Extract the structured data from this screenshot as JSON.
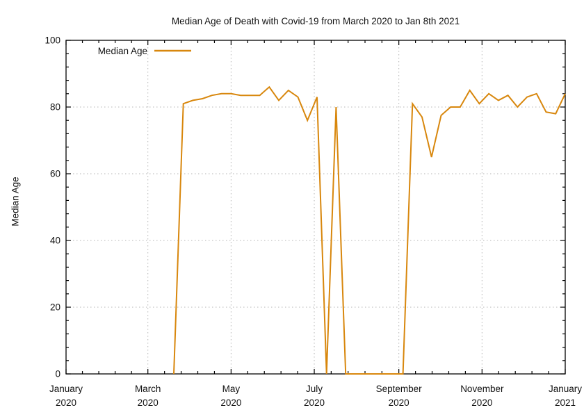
{
  "title": "Median Age of Death with Covid-19 from March 2020 to Jan 8th 2021",
  "legend": {
    "label": "Median Age",
    "position": "top-left-inside"
  },
  "colors": {
    "line": "#d8870d",
    "grid": "#b5b5b5",
    "axis": "#000000",
    "text": "#111111",
    "background": "#ffffff"
  },
  "chart_data": {
    "type": "line",
    "title": "Median Age of Death with Covid-19 from March 2020 to Jan 8th 2021",
    "xlabel": "",
    "ylabel": "Median Age",
    "ylim": [
      0,
      100
    ],
    "yticks": [
      0,
      20,
      40,
      60,
      80,
      100
    ],
    "y_minor_step": 4,
    "x_start": "2020-01-01",
    "x_end": "2021-01-01",
    "x_minor_divisions": 5,
    "grid": "dotted",
    "legend_position": "top-left",
    "x_ticks": [
      {
        "date": "2020-01-01",
        "month": "January",
        "year": "2020"
      },
      {
        "date": "2020-03-01",
        "month": "March",
        "year": "2020"
      },
      {
        "date": "2020-05-01",
        "month": "May",
        "year": "2020"
      },
      {
        "date": "2020-07-01",
        "month": "July",
        "year": "2020"
      },
      {
        "date": "2020-09-01",
        "month": "September",
        "year": "2020"
      },
      {
        "date": "2020-11-01",
        "month": "November",
        "year": "2020"
      },
      {
        "date": "2021-01-01",
        "month": "January",
        "year": "2021"
      }
    ],
    "series": [
      {
        "name": "Median Age",
        "points": [
          [
            "2020-03-20",
            0
          ],
          [
            "2020-03-27",
            81
          ],
          [
            "2020-04-03",
            82
          ],
          [
            "2020-04-10",
            82.5
          ],
          [
            "2020-04-17",
            83.5
          ],
          [
            "2020-04-24",
            84
          ],
          [
            "2020-05-01",
            84
          ],
          [
            "2020-05-08",
            83.5
          ],
          [
            "2020-05-15",
            83.5
          ],
          [
            "2020-05-22",
            83.5
          ],
          [
            "2020-05-29",
            86
          ],
          [
            "2020-06-05",
            82
          ],
          [
            "2020-06-12",
            85
          ],
          [
            "2020-06-19",
            83
          ],
          [
            "2020-06-26",
            76
          ],
          [
            "2020-07-03",
            83
          ],
          [
            "2020-07-10",
            0
          ],
          [
            "2020-07-17",
            80
          ],
          [
            "2020-07-24",
            0
          ],
          [
            "2020-07-31",
            0
          ],
          [
            "2020-08-07",
            0
          ],
          [
            "2020-08-14",
            0
          ],
          [
            "2020-08-21",
            0
          ],
          [
            "2020-08-28",
            0
          ],
          [
            "2020-09-04",
            0
          ],
          [
            "2020-09-11",
            81
          ],
          [
            "2020-09-18",
            77
          ],
          [
            "2020-09-25",
            65
          ],
          [
            "2020-10-02",
            77.5
          ],
          [
            "2020-10-09",
            80
          ],
          [
            "2020-10-16",
            80
          ],
          [
            "2020-10-23",
            85
          ],
          [
            "2020-10-30",
            81
          ],
          [
            "2020-11-06",
            84
          ],
          [
            "2020-11-13",
            82
          ],
          [
            "2020-11-20",
            83.5
          ],
          [
            "2020-11-27",
            80
          ],
          [
            "2020-12-04",
            83
          ],
          [
            "2020-12-11",
            84
          ],
          [
            "2020-12-18",
            78.5
          ],
          [
            "2020-12-25",
            78
          ],
          [
            "2021-01-01",
            84
          ]
        ]
      }
    ]
  }
}
